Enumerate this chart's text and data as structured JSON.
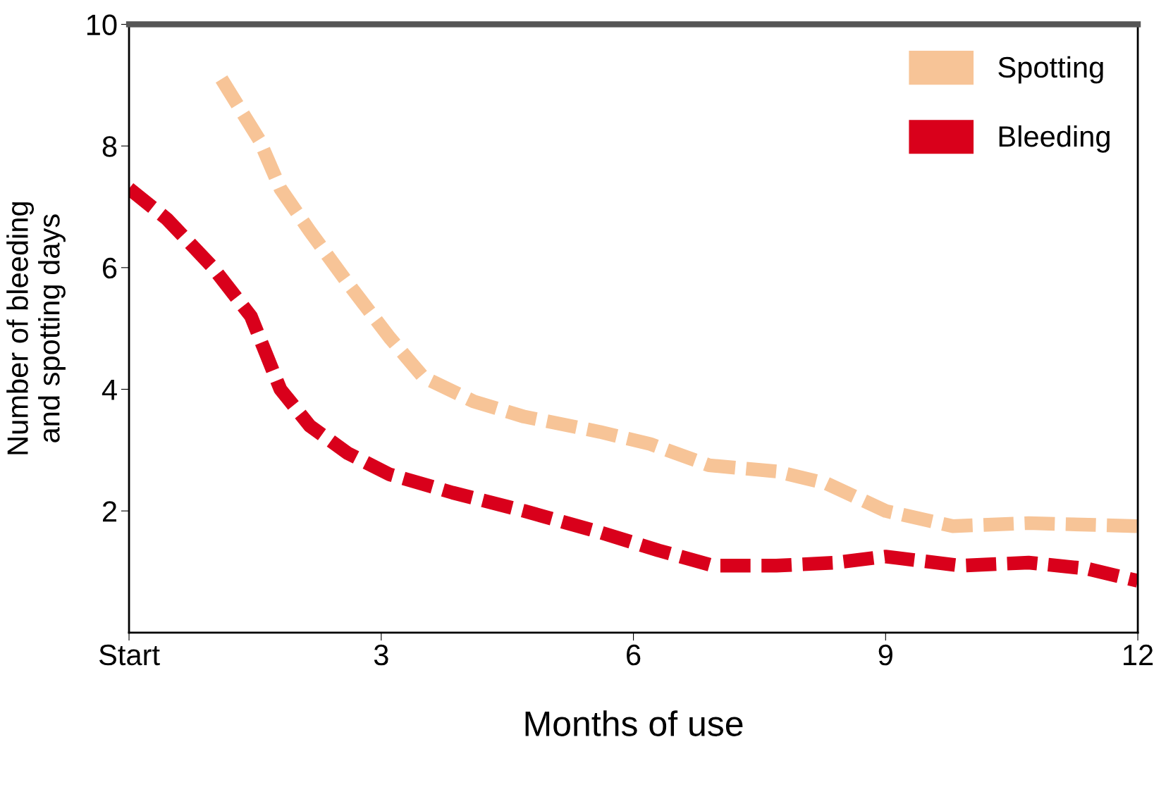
{
  "chart_data": {
    "type": "line",
    "xlabel": "Months of use",
    "ylabel": "Number of bleeding\nand spotting days",
    "xlim": [
      0,
      12
    ],
    "ylim": [
      0,
      10
    ],
    "xticks": [
      {
        "value": 0,
        "label": "Start"
      },
      3,
      6,
      9,
      12
    ],
    "yticks": [
      2,
      4,
      6,
      8,
      10
    ],
    "grid": false,
    "legend": "top right",
    "line_style": "dashed",
    "marker": "none",
    "series": [
      {
        "name": "Spotting",
        "color": "#f7c497",
        "x": [
          1.1,
          1.55,
          1.8,
          2.15,
          2.6,
          3.1,
          3.5,
          4.1,
          4.7,
          5.6,
          6.2,
          6.9,
          7.7,
          8.3,
          9.0,
          9.8,
          10.7,
          12
        ],
        "values": [
          9.1,
          8.1,
          7.3,
          6.6,
          5.75,
          4.85,
          4.2,
          3.8,
          3.55,
          3.3,
          3.1,
          2.75,
          2.65,
          2.45,
          2.0,
          1.75,
          1.8,
          1.75
        ]
      },
      {
        "name": "Bleeding",
        "color": "#d9001b",
        "x": [
          0,
          0.45,
          1.0,
          1.45,
          1.8,
          2.15,
          2.6,
          3.1,
          3.85,
          4.7,
          5.6,
          6.3,
          6.95,
          7.7,
          8.4,
          9.0,
          9.9,
          10.7,
          11.4,
          12
        ],
        "values": [
          7.3,
          6.8,
          6.0,
          5.2,
          4.0,
          3.4,
          2.95,
          2.6,
          2.3,
          2.0,
          1.65,
          1.35,
          1.1,
          1.1,
          1.15,
          1.25,
          1.1,
          1.15,
          1.05,
          0.85
        ]
      }
    ]
  }
}
